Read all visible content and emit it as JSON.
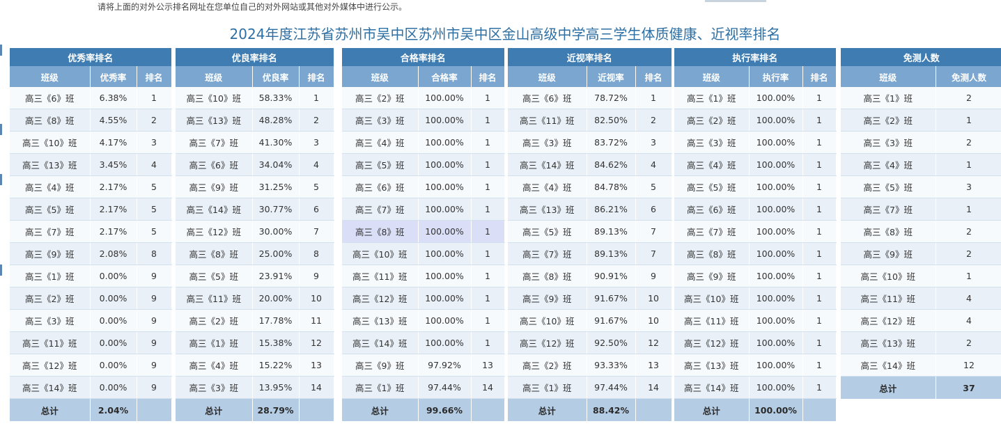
{
  "notice": "请将上面的对外公示排名网址在您单位自己的对外网站或其他对外媒体中进行公示。",
  "title": "2024年度江苏省苏州市吴中区苏州市吴中区金山高级中学高三学生体质健康、近视率排名",
  "tables": [
    {
      "title": "优秀率排名",
      "headers": [
        "班级",
        "优秀率",
        "排名"
      ],
      "rows": [
        [
          "高三《6》班",
          "6.38%",
          "1"
        ],
        [
          "高三《8》班",
          "4.55%",
          "2"
        ],
        [
          "高三《10》班",
          "4.17%",
          "3"
        ],
        [
          "高三《13》班",
          "3.45%",
          "4"
        ],
        [
          "高三《4》班",
          "2.17%",
          "5"
        ],
        [
          "高三《5》班",
          "2.17%",
          "5"
        ],
        [
          "高三《7》班",
          "2.17%",
          "5"
        ],
        [
          "高三《9》班",
          "2.08%",
          "8"
        ],
        [
          "高三《1》班",
          "0.00%",
          "9"
        ],
        [
          "高三《2》班",
          "0.00%",
          "9"
        ],
        [
          "高三《3》班",
          "0.00%",
          "9"
        ],
        [
          "高三《11》班",
          "0.00%",
          "9"
        ],
        [
          "高三《12》班",
          "0.00%",
          "9"
        ],
        [
          "高三《14》班",
          "0.00%",
          "9"
        ]
      ],
      "total": [
        "总计",
        "2.04%",
        ""
      ]
    },
    {
      "title": "优良率排名",
      "headers": [
        "班级",
        "优良率",
        "排名"
      ],
      "rows": [
        [
          "高三《10》班",
          "58.33%",
          "1"
        ],
        [
          "高三《13》班",
          "48.28%",
          "2"
        ],
        [
          "高三《7》班",
          "41.30%",
          "3"
        ],
        [
          "高三《6》班",
          "34.04%",
          "4"
        ],
        [
          "高三《9》班",
          "31.25%",
          "5"
        ],
        [
          "高三《14》班",
          "30.77%",
          "6"
        ],
        [
          "高三《12》班",
          "30.00%",
          "7"
        ],
        [
          "高三《8》班",
          "25.00%",
          "8"
        ],
        [
          "高三《5》班",
          "23.91%",
          "9"
        ],
        [
          "高三《11》班",
          "20.00%",
          "10"
        ],
        [
          "高三《2》班",
          "17.78%",
          "11"
        ],
        [
          "高三《1》班",
          "15.38%",
          "12"
        ],
        [
          "高三《4》班",
          "15.22%",
          "13"
        ],
        [
          "高三《3》班",
          "13.95%",
          "14"
        ]
      ],
      "total": [
        "总计",
        "28.79%",
        ""
      ]
    },
    {
      "title": "合格率排名",
      "headers": [
        "班级",
        "合格率",
        "排名"
      ],
      "rows": [
        [
          "高三《2》班",
          "100.00%",
          "1"
        ],
        [
          "高三《3》班",
          "100.00%",
          "1"
        ],
        [
          "高三《4》班",
          "100.00%",
          "1"
        ],
        [
          "高三《5》班",
          "100.00%",
          "1"
        ],
        [
          "高三《6》班",
          "100.00%",
          "1"
        ],
        [
          "高三《7》班",
          "100.00%",
          "1"
        ],
        [
          "高三《8》班",
          "100.00%",
          "1"
        ],
        [
          "高三《10》班",
          "100.00%",
          "1"
        ],
        [
          "高三《11》班",
          "100.00%",
          "1"
        ],
        [
          "高三《12》班",
          "100.00%",
          "1"
        ],
        [
          "高三《13》班",
          "100.00%",
          "1"
        ],
        [
          "高三《14》班",
          "100.00%",
          "1"
        ],
        [
          "高三《9》班",
          "97.92%",
          "13"
        ],
        [
          "高三《1》班",
          "97.44%",
          "14"
        ]
      ],
      "total": [
        "总计",
        "99.66%",
        ""
      ]
    },
    {
      "title": "近视率排名",
      "headers": [
        "班级",
        "近视率",
        "排名"
      ],
      "rows": [
        [
          "高三《6》班",
          "78.72%",
          "1"
        ],
        [
          "高三《11》班",
          "82.50%",
          "2"
        ],
        [
          "高三《3》班",
          "83.72%",
          "3"
        ],
        [
          "高三《14》班",
          "84.62%",
          "4"
        ],
        [
          "高三《4》班",
          "84.78%",
          "5"
        ],
        [
          "高三《13》班",
          "86.21%",
          "6"
        ],
        [
          "高三《5》班",
          "89.13%",
          "7"
        ],
        [
          "高三《7》班",
          "89.13%",
          "7"
        ],
        [
          "高三《8》班",
          "90.91%",
          "9"
        ],
        [
          "高三《9》班",
          "91.67%",
          "10"
        ],
        [
          "高三《10》班",
          "91.67%",
          "10"
        ],
        [
          "高三《12》班",
          "92.50%",
          "12"
        ],
        [
          "高三《2》班",
          "93.33%",
          "13"
        ],
        [
          "高三《1》班",
          "97.44%",
          "14"
        ]
      ],
      "total": [
        "总计",
        "88.42%",
        ""
      ]
    },
    {
      "title": "执行率排名",
      "headers": [
        "班级",
        "执行率",
        "排名"
      ],
      "rows": [
        [
          "高三《1》班",
          "100.00%",
          "1"
        ],
        [
          "高三《2》班",
          "100.00%",
          "1"
        ],
        [
          "高三《3》班",
          "100.00%",
          "1"
        ],
        [
          "高三《4》班",
          "100.00%",
          "1"
        ],
        [
          "高三《5》班",
          "100.00%",
          "1"
        ],
        [
          "高三《6》班",
          "100.00%",
          "1"
        ],
        [
          "高三《7》班",
          "100.00%",
          "1"
        ],
        [
          "高三《8》班",
          "100.00%",
          "1"
        ],
        [
          "高三《9》班",
          "100.00%",
          "1"
        ],
        [
          "高三《10》班",
          "100.00%",
          "1"
        ],
        [
          "高三《11》班",
          "100.00%",
          "1"
        ],
        [
          "高三《12》班",
          "100.00%",
          "1"
        ],
        [
          "高三《13》班",
          "100.00%",
          "1"
        ],
        [
          "高三《14》班",
          "100.00%",
          "1"
        ]
      ],
      "total": [
        "总计",
        "100.00%",
        ""
      ]
    },
    {
      "title": "免测人数",
      "headers": [
        "班级",
        "免测人数"
      ],
      "rows": [
        [
          "高三《1》班",
          "2"
        ],
        [
          "高三《2》班",
          "1"
        ],
        [
          "高三《3》班",
          "2"
        ],
        [
          "高三《4》班",
          "1"
        ],
        [
          "高三《5》班",
          "3"
        ],
        [
          "高三《7》班",
          "1"
        ],
        [
          "高三《8》班",
          "2"
        ],
        [
          "高三《9》班",
          "2"
        ],
        [
          "高三《10》班",
          "1"
        ],
        [
          "高三《11》班",
          "4"
        ],
        [
          "高三《12》班",
          "4"
        ],
        [
          "高三《13》班",
          "2"
        ],
        [
          "高三《14》班",
          "12"
        ]
      ],
      "total": [
        "总计",
        "37"
      ]
    }
  ],
  "highlight": {
    "table_index": 2,
    "row_index": 6
  },
  "colors": {
    "title_text": "#2e6fa3",
    "section_header_bg": "#3f7cb1",
    "column_header_bg": "#7ba6cf",
    "row_odd_bg": "#e9f0f8",
    "row_even_bg": "#f7fafd",
    "highlight_row_bg": "#dadff7",
    "total_row_bg": "#b5cde4"
  }
}
